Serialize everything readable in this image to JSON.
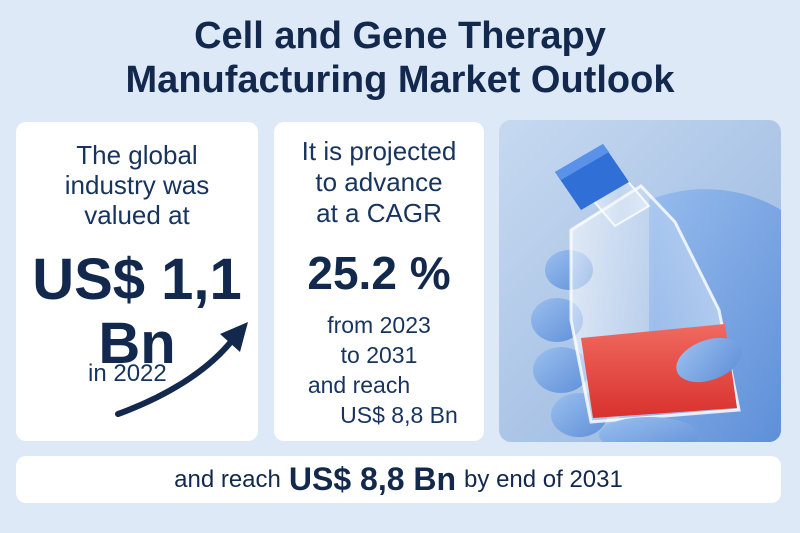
{
  "title": {
    "line1": "Cell and Gene Therapy",
    "line2": "Manufacturing Market Outlook"
  },
  "card_valuation": {
    "lead_lines": [
      "The global",
      "industry was",
      "valued at"
    ],
    "value_line1": "US$ 1,1",
    "value_line2": "Bn",
    "year_text": "in 2022",
    "icon": "trend-arrow-icon"
  },
  "card_projection": {
    "lead_lines": [
      "It is projected",
      "to advance",
      "at a CAGR"
    ],
    "cagr": "25.2 %",
    "detail_lines": [
      "from 2023",
      "to 2031",
      "and reach",
      "US$ 8,8 Bn"
    ]
  },
  "photo": {
    "icon": "cell-culture-flask-icon",
    "glove_color": "#7fa9e6",
    "cap_color": "#2f6fd6",
    "liquid_color": "#e84a45"
  },
  "banner": {
    "prefix": "and reach",
    "highlight": "US$ 8,8 Bn",
    "suffix": "by end of 2031"
  },
  "colors": {
    "background": "#dde9f7",
    "navy": "#12294d",
    "card": "#ffffff"
  }
}
